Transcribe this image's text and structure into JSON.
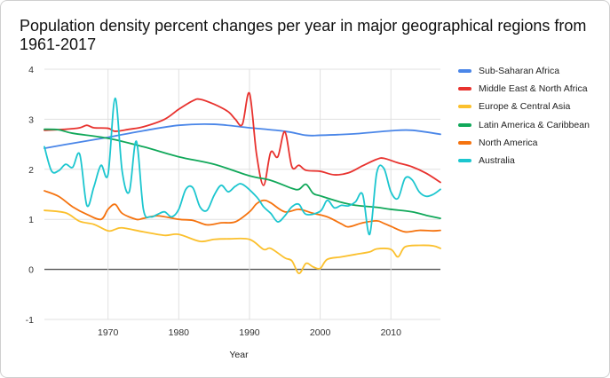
{
  "chart_data": {
    "type": "line",
    "title": "Population density percent changes per year in major geographical regions from 1961-2017",
    "xlabel": "Year",
    "ylabel": "",
    "xlim": [
      1961,
      2017
    ],
    "ylim": [
      -1,
      4
    ],
    "x_ticks": [
      1970,
      1980,
      1990,
      2000,
      2010
    ],
    "y_ticks": [
      -1,
      0,
      1,
      2,
      3,
      4
    ],
    "grid": true,
    "legend_position": "right",
    "series": [
      {
        "name": "Sub-Saharan Africa",
        "color": "#4a86e8",
        "points": [
          [
            1961,
            2.42
          ],
          [
            1965,
            2.52
          ],
          [
            1970,
            2.64
          ],
          [
            1975,
            2.77
          ],
          [
            1980,
            2.88
          ],
          [
            1985,
            2.9
          ],
          [
            1990,
            2.83
          ],
          [
            1995,
            2.76
          ],
          [
            1998,
            2.68
          ],
          [
            2000,
            2.68
          ],
          [
            2005,
            2.71
          ],
          [
            2010,
            2.77
          ],
          [
            2013,
            2.78
          ],
          [
            2017,
            2.7
          ]
        ]
      },
      {
        "name": "Middle East & North Africa",
        "color": "#e8322e",
        "points": [
          [
            1961,
            2.78
          ],
          [
            1964,
            2.8
          ],
          [
            1966,
            2.83
          ],
          [
            1967,
            2.88
          ],
          [
            1968,
            2.83
          ],
          [
            1970,
            2.82
          ],
          [
            1971,
            2.76
          ],
          [
            1973,
            2.8
          ],
          [
            1975,
            2.85
          ],
          [
            1978,
            3.0
          ],
          [
            1980,
            3.2
          ],
          [
            1982,
            3.37
          ],
          [
            1983,
            3.4
          ],
          [
            1985,
            3.3
          ],
          [
            1987,
            3.15
          ],
          [
            1988,
            3.0
          ],
          [
            1989,
            2.9
          ],
          [
            1990,
            3.52
          ],
          [
            1991,
            2.3
          ],
          [
            1992,
            1.68
          ],
          [
            1993,
            2.34
          ],
          [
            1994,
            2.25
          ],
          [
            1995,
            2.75
          ],
          [
            1996,
            2.05
          ],
          [
            1997,
            2.08
          ],
          [
            1998,
            1.98
          ],
          [
            2000,
            1.96
          ],
          [
            2002,
            1.89
          ],
          [
            2004,
            1.93
          ],
          [
            2006,
            2.07
          ],
          [
            2008,
            2.2
          ],
          [
            2009,
            2.22
          ],
          [
            2011,
            2.13
          ],
          [
            2013,
            2.05
          ],
          [
            2015,
            1.92
          ],
          [
            2017,
            1.74
          ]
        ]
      },
      {
        "name": "Europe & Central Asia",
        "color": "#fbc02d",
        "points": [
          [
            1961,
            1.18
          ],
          [
            1964,
            1.13
          ],
          [
            1966,
            0.96
          ],
          [
            1968,
            0.9
          ],
          [
            1970,
            0.77
          ],
          [
            1971,
            0.8
          ],
          [
            1972,
            0.83
          ],
          [
            1975,
            0.75
          ],
          [
            1978,
            0.68
          ],
          [
            1980,
            0.7
          ],
          [
            1983,
            0.56
          ],
          [
            1985,
            0.6
          ],
          [
            1987,
            0.61
          ],
          [
            1990,
            0.6
          ],
          [
            1992,
            0.4
          ],
          [
            1993,
            0.42
          ],
          [
            1995,
            0.23
          ],
          [
            1996,
            0.17
          ],
          [
            1997,
            -0.08
          ],
          [
            1998,
            0.12
          ],
          [
            1999,
            0.05
          ],
          [
            2000,
            0.02
          ],
          [
            2001,
            0.2
          ],
          [
            2003,
            0.25
          ],
          [
            2005,
            0.3
          ],
          [
            2007,
            0.35
          ],
          [
            2008,
            0.41
          ],
          [
            2010,
            0.4
          ],
          [
            2011,
            0.25
          ],
          [
            2012,
            0.45
          ],
          [
            2014,
            0.48
          ],
          [
            2016,
            0.47
          ],
          [
            2017,
            0.42
          ]
        ]
      },
      {
        "name": "Latin America & Caribbean",
        "color": "#11a85a",
        "points": [
          [
            1961,
            2.8
          ],
          [
            1963,
            2.79
          ],
          [
            1965,
            2.72
          ],
          [
            1970,
            2.62
          ],
          [
            1975,
            2.45
          ],
          [
            1980,
            2.25
          ],
          [
            1985,
            2.1
          ],
          [
            1990,
            1.87
          ],
          [
            1993,
            1.78
          ],
          [
            1996,
            1.62
          ],
          [
            1997,
            1.6
          ],
          [
            1998,
            1.7
          ],
          [
            1999,
            1.52
          ],
          [
            2000,
            1.47
          ],
          [
            2003,
            1.34
          ],
          [
            2005,
            1.28
          ],
          [
            2008,
            1.24
          ],
          [
            2010,
            1.2
          ],
          [
            2013,
            1.15
          ],
          [
            2015,
            1.08
          ],
          [
            2017,
            1.02
          ]
        ]
      },
      {
        "name": "North America",
        "color": "#f5730f",
        "points": [
          [
            1961,
            1.57
          ],
          [
            1963,
            1.46
          ],
          [
            1965,
            1.25
          ],
          [
            1967,
            1.1
          ],
          [
            1969,
            1.0
          ],
          [
            1970,
            1.2
          ],
          [
            1971,
            1.3
          ],
          [
            1972,
            1.12
          ],
          [
            1974,
            1.0
          ],
          [
            1975,
            1.02
          ],
          [
            1977,
            1.07
          ],
          [
            1980,
            1.0
          ],
          [
            1982,
            0.98
          ],
          [
            1984,
            0.89
          ],
          [
            1986,
            0.93
          ],
          [
            1988,
            0.95
          ],
          [
            1990,
            1.15
          ],
          [
            1991,
            1.31
          ],
          [
            1992,
            1.38
          ],
          [
            1993,
            1.33
          ],
          [
            1995,
            1.15
          ],
          [
            1997,
            1.2
          ],
          [
            1999,
            1.12
          ],
          [
            2001,
            1.05
          ],
          [
            2003,
            0.91
          ],
          [
            2004,
            0.85
          ],
          [
            2006,
            0.93
          ],
          [
            2008,
            0.97
          ],
          [
            2009,
            0.92
          ],
          [
            2010,
            0.86
          ],
          [
            2012,
            0.75
          ],
          [
            2014,
            0.78
          ],
          [
            2016,
            0.77
          ],
          [
            2017,
            0.78
          ]
        ]
      },
      {
        "name": "Australia",
        "color": "#1cc6cf",
        "points": [
          [
            1961,
            2.45
          ],
          [
            1962,
            1.97
          ],
          [
            1963,
            1.97
          ],
          [
            1964,
            2.1
          ],
          [
            1965,
            2.04
          ],
          [
            1966,
            2.3
          ],
          [
            1967,
            1.28
          ],
          [
            1968,
            1.65
          ],
          [
            1969,
            2.08
          ],
          [
            1970,
            1.9
          ],
          [
            1971,
            3.42
          ],
          [
            1972,
            1.96
          ],
          [
            1973,
            1.55
          ],
          [
            1974,
            2.56
          ],
          [
            1975,
            1.2
          ],
          [
            1976,
            1.05
          ],
          [
            1977,
            1.1
          ],
          [
            1978,
            1.15
          ],
          [
            1979,
            1.05
          ],
          [
            1980,
            1.2
          ],
          [
            1981,
            1.6
          ],
          [
            1982,
            1.63
          ],
          [
            1983,
            1.25
          ],
          [
            1984,
            1.18
          ],
          [
            1985,
            1.48
          ],
          [
            1986,
            1.68
          ],
          [
            1987,
            1.55
          ],
          [
            1988,
            1.66
          ],
          [
            1989,
            1.7
          ],
          [
            1991,
            1.45
          ],
          [
            1992,
            1.25
          ],
          [
            1993,
            1.12
          ],
          [
            1994,
            0.95
          ],
          [
            1995,
            1.07
          ],
          [
            1996,
            1.25
          ],
          [
            1997,
            1.3
          ],
          [
            1998,
            1.1
          ],
          [
            2000,
            1.16
          ],
          [
            2001,
            1.38
          ],
          [
            2002,
            1.23
          ],
          [
            2003,
            1.28
          ],
          [
            2004,
            1.27
          ],
          [
            2005,
            1.35
          ],
          [
            2006,
            1.5
          ],
          [
            2007,
            0.7
          ],
          [
            2008,
            1.93
          ],
          [
            2009,
            2.02
          ],
          [
            2010,
            1.55
          ],
          [
            2011,
            1.42
          ],
          [
            2012,
            1.82
          ],
          [
            2013,
            1.79
          ],
          [
            2014,
            1.55
          ],
          [
            2015,
            1.46
          ],
          [
            2016,
            1.5
          ],
          [
            2017,
            1.6
          ]
        ]
      }
    ]
  }
}
